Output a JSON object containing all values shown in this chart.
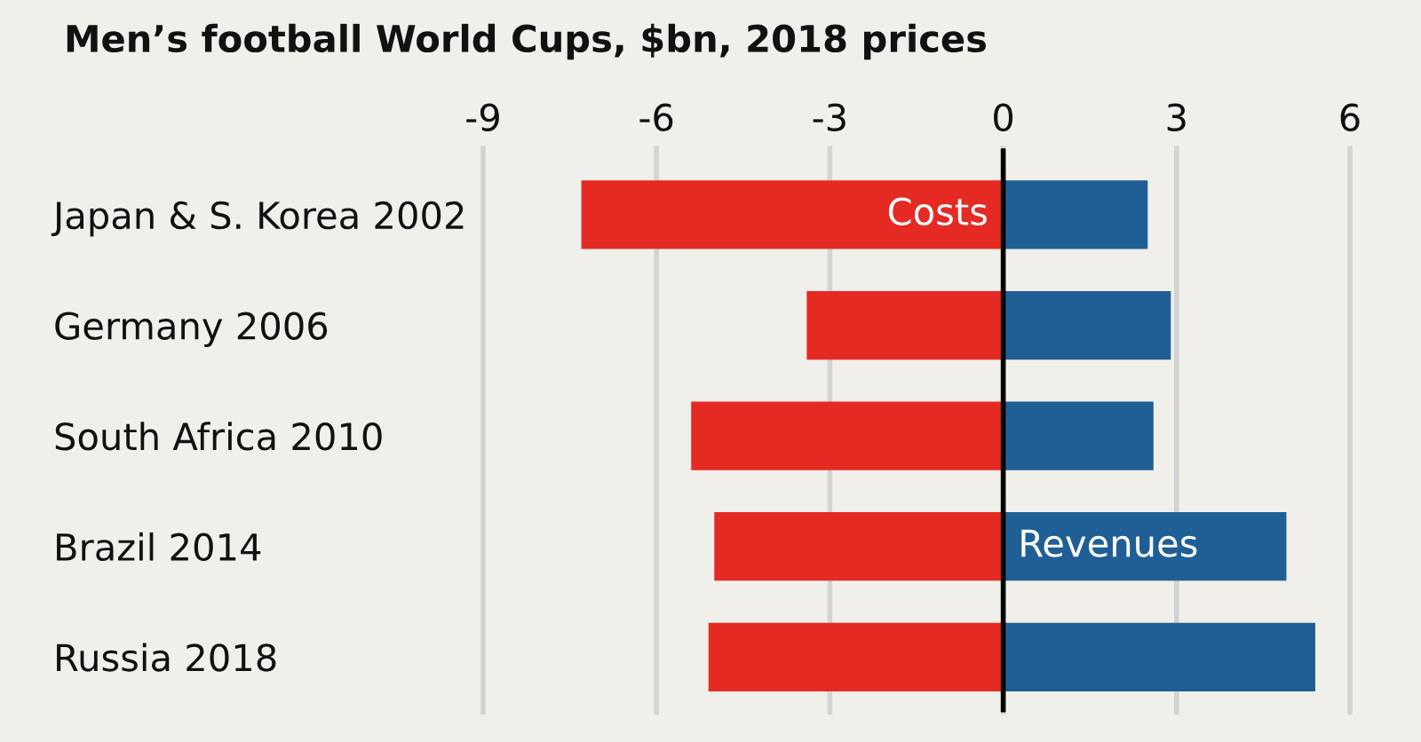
{
  "chart_data": {
    "type": "bar",
    "orientation": "horizontal",
    "stacked": true,
    "title": "Men’s football World Cups, $bn, 2018 prices",
    "categories": [
      "Japan & S. Korea 2002",
      "Germany 2006",
      "South Africa 2010",
      "Brazil 2014",
      "Russia 2018"
    ],
    "series": [
      {
        "color": "#e52a23",
        "values": [
          -7.3,
          -3.4,
          -5.4,
          -5.0,
          -5.1
        ]
      },
      {
        "color": "#1f5f96",
        "values": [
          2.5,
          2.9,
          2.6,
          4.9,
          5.4
        ]
      }
    ],
    "xlim": [
      -9,
      6
    ],
    "xticks": [
      -9,
      -6,
      -3,
      0,
      3,
      6
    ],
    "grid": "x",
    "legend": false,
    "ref_lines": [
      {
        "axis": "x",
        "value": 0,
        "color": "#000000"
      }
    ],
    "annotations": [
      {
        "text": "Costs",
        "x": 0,
        "y": "Japan & S. Korea 2002"
      },
      {
        "text": "Revenues",
        "x": 0,
        "y": "Brazil 2014"
      }
    ]
  }
}
